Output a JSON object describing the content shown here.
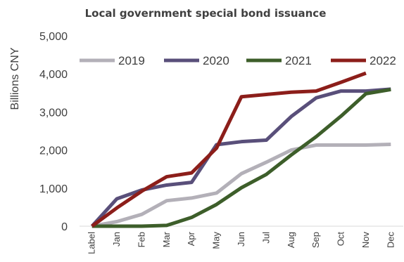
{
  "chart_data": {
    "type": "line",
    "title": "Local government special bond issuance",
    "ylabel": "Billions CNY",
    "xlabel": "",
    "ylim": [
      0,
      5000
    ],
    "yticks": [
      0,
      1000,
      2000,
      3000,
      4000,
      5000
    ],
    "ytick_labels": [
      "0",
      "1,000",
      "2,000",
      "3,000",
      "4,000",
      "5,000"
    ],
    "categories": [
      "Label",
      "Jan",
      "Feb",
      "Mar",
      "Apr",
      "May",
      "Jun",
      "Jul",
      "Aug",
      "Sep",
      "Oct",
      "Nov",
      "Dec"
    ],
    "grid": false,
    "legend_position": "top",
    "series": [
      {
        "name": "2019",
        "color": "#b3b0b8",
        "values": [
          0,
          120,
          310,
          670,
          740,
          870,
          1380,
          1680,
          2000,
          2130,
          2130,
          2130,
          2150
        ]
      },
      {
        "name": "2020",
        "color": "#594f7a",
        "values": [
          0,
          720,
          950,
          1080,
          1150,
          2140,
          2220,
          2260,
          2880,
          3370,
          3550,
          3550,
          3600
        ]
      },
      {
        "name": "2021",
        "color": "#3d5e2a",
        "values": [
          0,
          0,
          0,
          20,
          230,
          570,
          1010,
          1360,
          1870,
          2350,
          2890,
          3480,
          3590
        ]
      },
      {
        "name": "2022",
        "color": "#8c1e1a",
        "values": [
          0,
          480,
          920,
          1300,
          1400,
          2050,
          3400,
          3460,
          3520,
          3550,
          3780,
          4020,
          null
        ]
      }
    ]
  }
}
